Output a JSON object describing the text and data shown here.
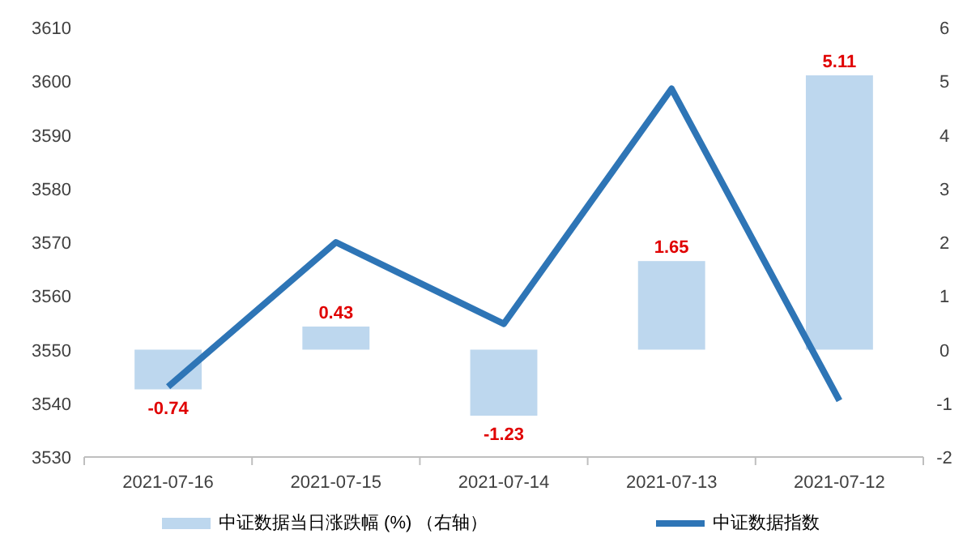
{
  "chart_data": {
    "type": "bar",
    "categories": [
      "2021-07-16",
      "2021-07-15",
      "2021-07-14",
      "2021-07-13",
      "2021-07-12"
    ],
    "series": [
      {
        "name": "中证数据当日涨跌幅 (%) （右轴）",
        "axis": "y2",
        "color": "#bdd7ee",
        "values": [
          -0.74,
          0.43,
          -1.23,
          1.65,
          5.11
        ],
        "value_labels": [
          "-0.74",
          "0.43",
          "-1.23",
          "1.65",
          "5.11"
        ]
      },
      {
        "name": "中证数据指数",
        "type": "line",
        "color": "#2e75b6",
        "values": [
          3543.1,
          3570,
          3554.8,
          3598.6,
          3540.5
        ]
      }
    ],
    "ylim": [
      3530,
      3610
    ],
    "yticks": [
      3530,
      3540,
      3550,
      3560,
      3570,
      3580,
      3590,
      3600,
      3610
    ],
    "y2lim": [
      -2,
      6
    ],
    "y2ticks": [
      -2,
      -1,
      0,
      1,
      2,
      3,
      4,
      5,
      6
    ],
    "grid": false,
    "legend": "bottom",
    "marker": "none",
    "line_style": "solid"
  }
}
